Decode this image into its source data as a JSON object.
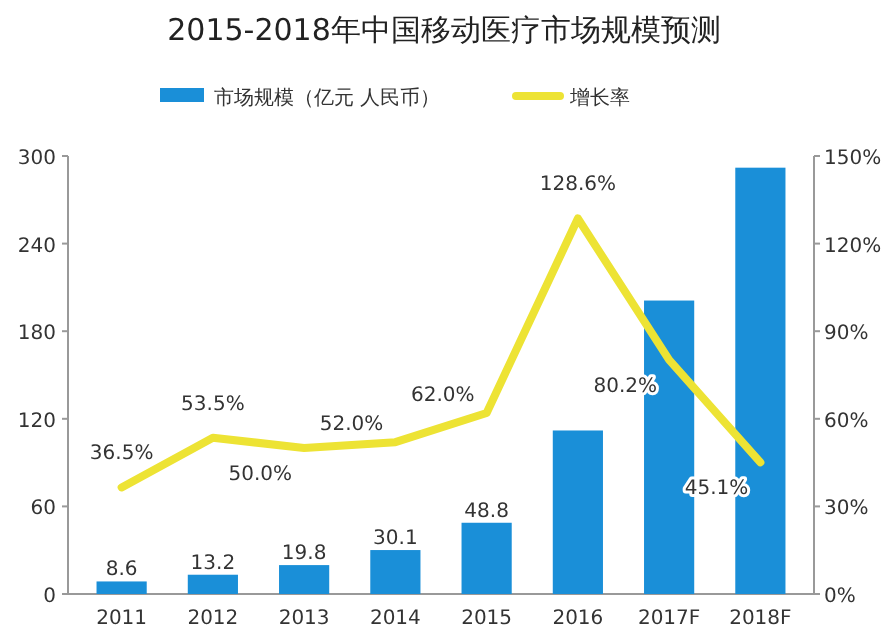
{
  "chart_data": {
    "type": "bar",
    "title": "2015-2018年中国移动医疗市场规模预测",
    "categories": [
      "2011",
      "2012",
      "2013",
      "2014",
      "2015",
      "2016",
      "2017F",
      "2018F"
    ],
    "series": [
      {
        "name": "市场规模（亿元 人民币）",
        "color": "#1a8fd8",
        "values": [
          8.6,
          13.2,
          19.8,
          30.1,
          48.8,
          112,
          201,
          292
        ],
        "value_labels": [
          "8.6",
          "13.2",
          "19.8",
          "30.1",
          "48.8",
          null,
          null,
          null
        ]
      },
      {
        "name": "增长率",
        "type": "line",
        "axis": "y2",
        "color": "#ede334",
        "values": [
          36.5,
          53.5,
          50.0,
          52.0,
          62.0,
          128.6,
          80.2,
          45.1
        ],
        "value_labels": [
          "36.5%",
          "53.5%",
          "50.0%",
          "52.0%",
          "62.0%",
          "128.6%",
          "80.2%",
          "45.1%"
        ]
      }
    ],
    "ylim": [
      0,
      300
    ],
    "yticks": [
      0,
      60,
      120,
      180,
      240,
      300
    ],
    "y2lim": [
      0,
      150
    ],
    "y2ticks": [
      {
        "value": 0,
        "label": "0%"
      },
      {
        "value": 30,
        "label": "30%"
      },
      {
        "value": 60,
        "label": "60%"
      },
      {
        "value": 90,
        "label": "90%"
      },
      {
        "value": 120,
        "label": "120%"
      },
      {
        "value": 150,
        "label": "150%"
      }
    ],
    "legend": "top",
    "grid": false
  }
}
